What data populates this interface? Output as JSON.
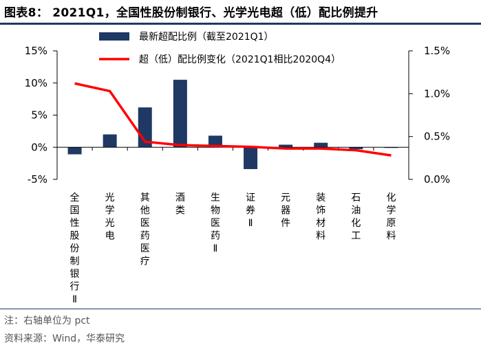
{
  "title": "图表8： 2021Q1，全国性股份制银行、光学光电超（低）配比例提升",
  "note": "注：右轴单位为 pct",
  "source": "资料来源：Wind，华泰研究",
  "colors": {
    "bar": "#1f3864",
    "line": "#ff0000",
    "rule": "#1f3864"
  },
  "chart_data": {
    "type": "bar",
    "categories": [
      "全国性股份制银行Ⅱ",
      "光学光电",
      "其他医药医疗",
      "酒类",
      "生物医药Ⅱ",
      "证券Ⅱ",
      "元器件",
      "装饰材料",
      "石油化工",
      "化学原料"
    ],
    "series": [
      {
        "name": "最新超配比例（截至2021Q1）",
        "type": "bar",
        "axis": "left",
        "values": [
          -1.1,
          2.0,
          6.2,
          10.5,
          1.8,
          -3.4,
          0.4,
          0.7,
          -0.3,
          -0.1
        ]
      },
      {
        "name": "超（低）配比例变化（2021Q1相比2020Q4）",
        "type": "line",
        "axis": "right",
        "values": [
          1.12,
          1.03,
          0.44,
          0.4,
          0.39,
          0.38,
          0.36,
          0.36,
          0.34,
          0.28
        ]
      }
    ],
    "y_left": {
      "min": -5,
      "max": 15,
      "ticks": [
        -5,
        0,
        5,
        10,
        15
      ],
      "tick_labels": [
        "-5%",
        "0%",
        "5%",
        "10%",
        "15%"
      ]
    },
    "y_right": {
      "min": 0.0,
      "max": 1.5,
      "ticks": [
        0.0,
        0.5,
        1.0,
        1.5
      ],
      "tick_labels": [
        "0.0%",
        "0.5%",
        "1.0%",
        "1.5%"
      ]
    },
    "grid": false,
    "legend_position": "top"
  }
}
